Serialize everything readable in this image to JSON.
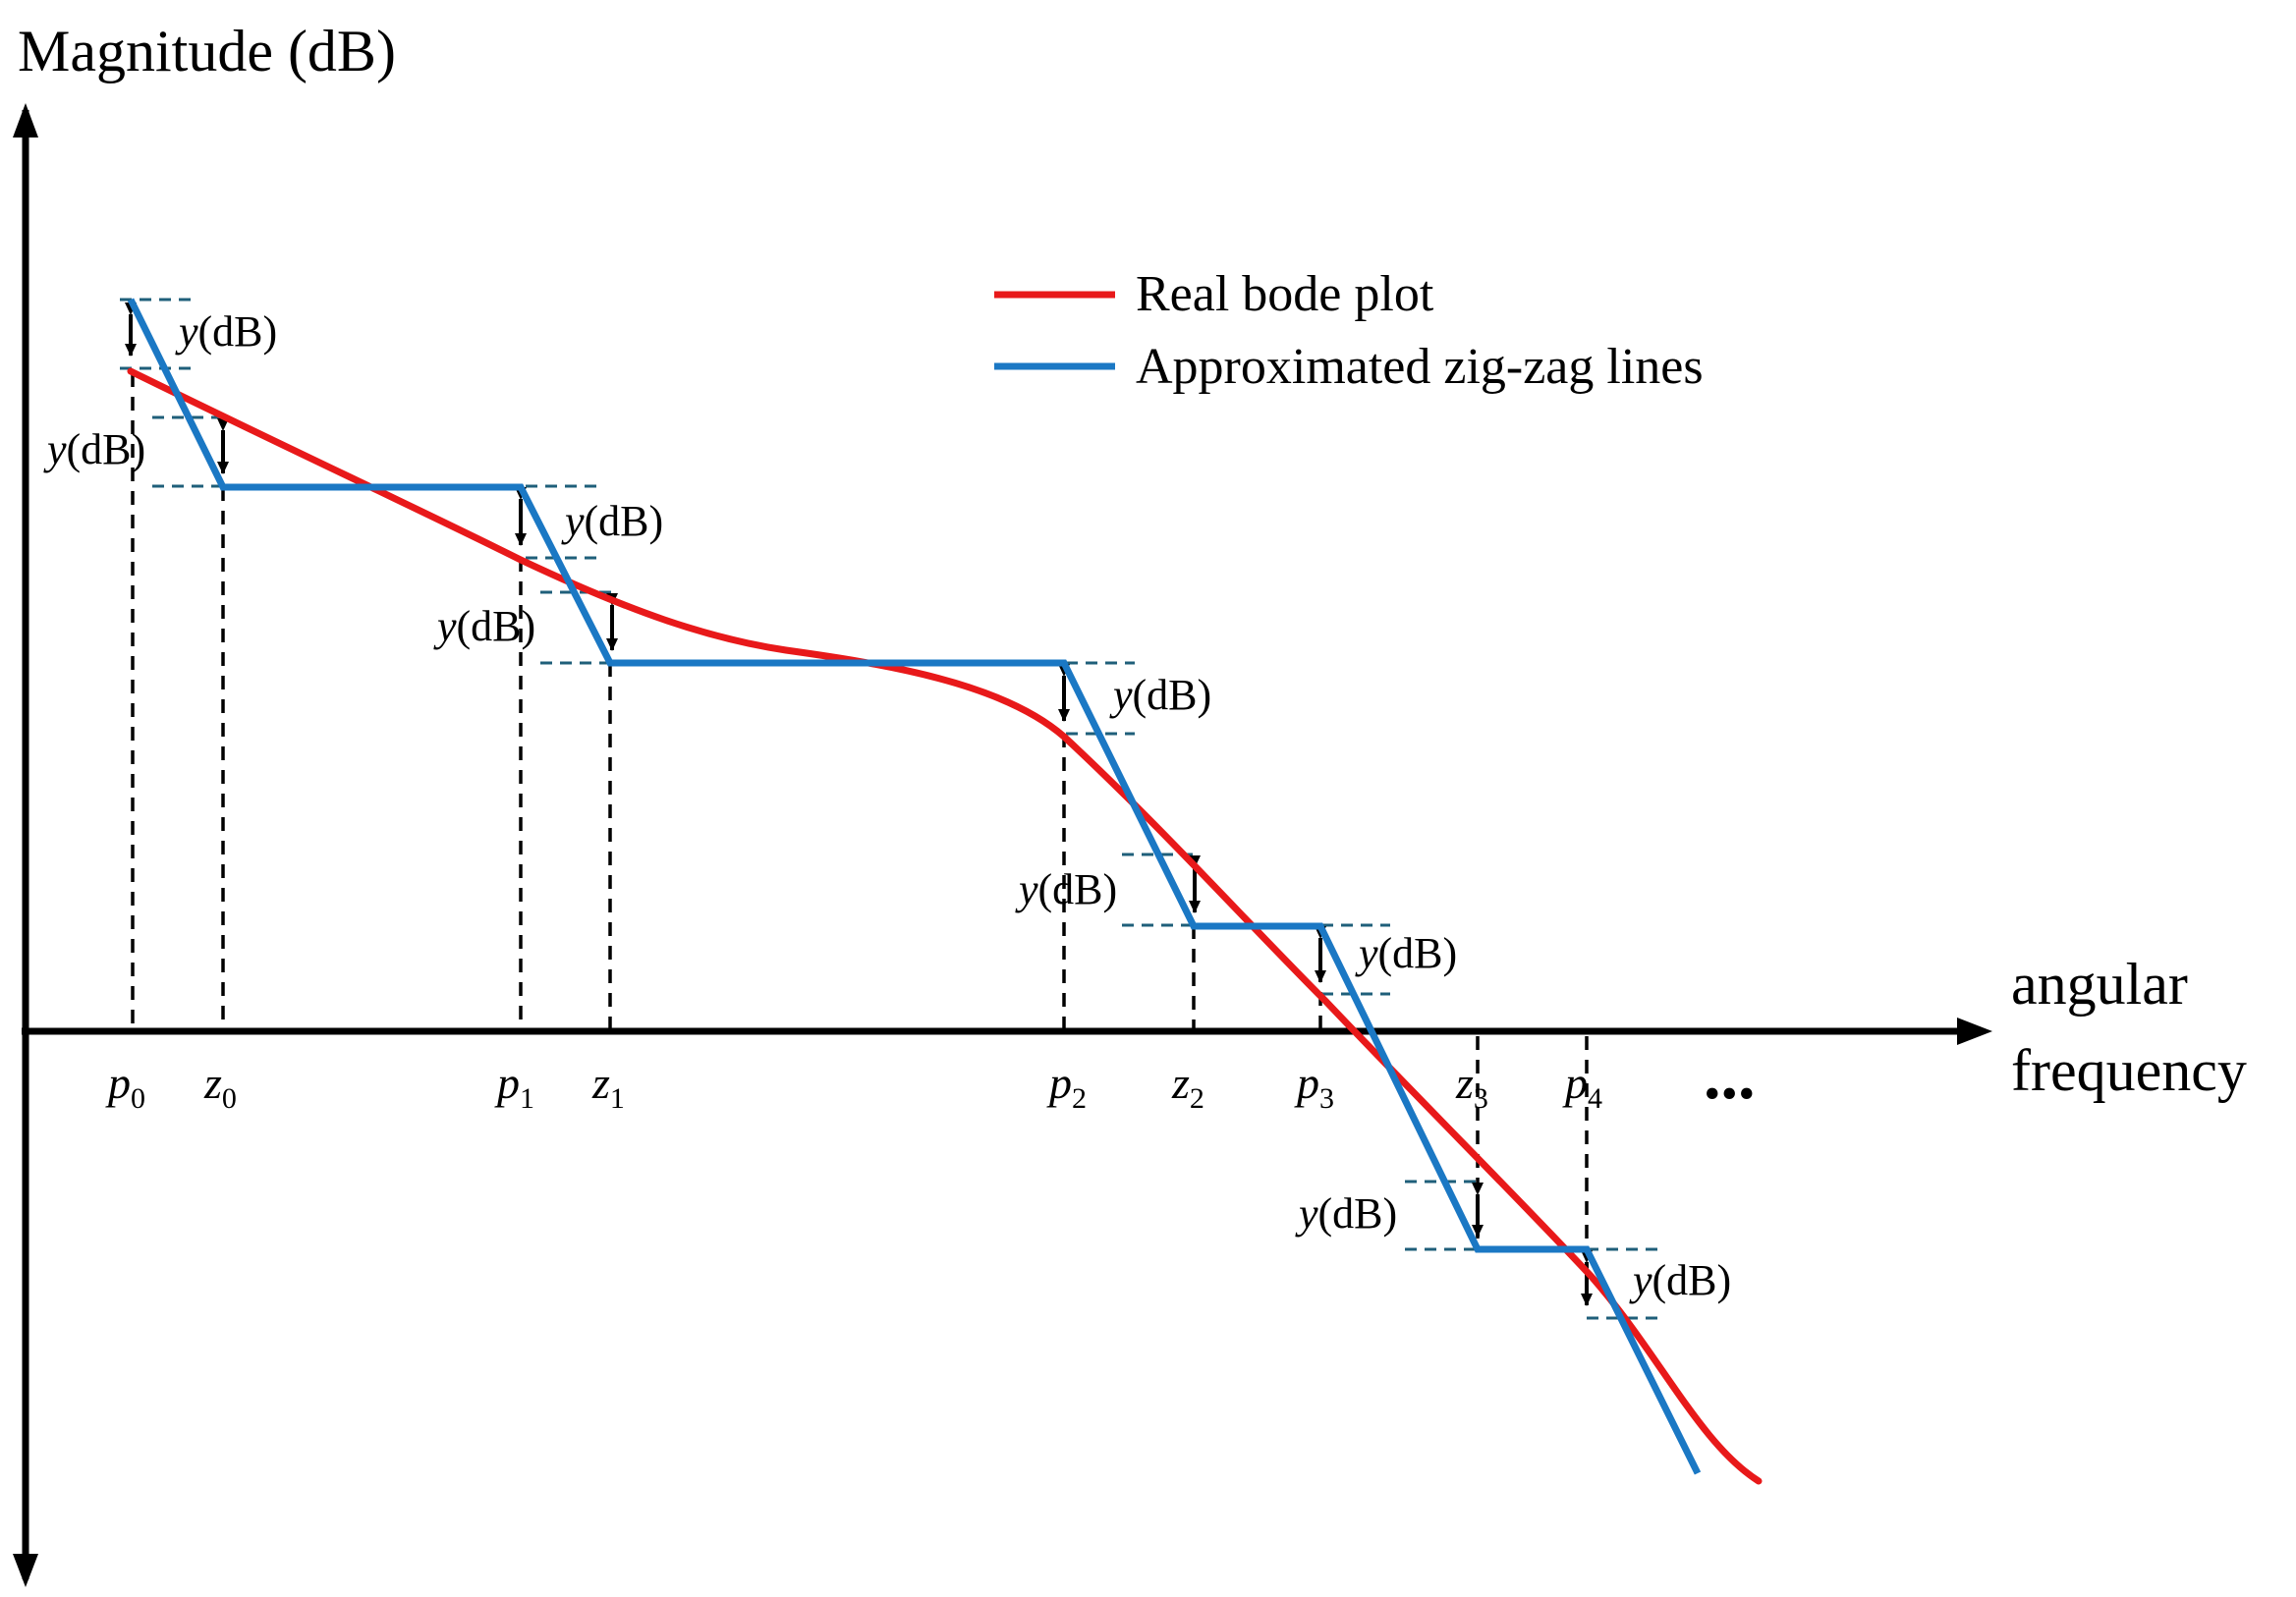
{
  "axes": {
    "y_label": "Magnitude (dB)",
    "x_label_line1": "angular",
    "x_label_line2": "frequency"
  },
  "legend": [
    {
      "label": "Real bode plot",
      "color": "#e8191a"
    },
    {
      "label": "Approximated zig-zag lines",
      "color": "#1b78c4"
    }
  ],
  "step_label": {
    "var": "y",
    "unit": "(dB)"
  },
  "frequency_marks": [
    {
      "base": "p",
      "sub": "0"
    },
    {
      "base": "z",
      "sub": "0"
    },
    {
      "base": "p",
      "sub": "1"
    },
    {
      "base": "z",
      "sub": "1"
    },
    {
      "base": "p",
      "sub": "2"
    },
    {
      "base": "z",
      "sub": "2"
    },
    {
      "base": "p",
      "sub": "3"
    },
    {
      "base": "z",
      "sub": "3"
    },
    {
      "base": "p",
      "sub": "4"
    }
  ],
  "ellipsis": "...",
  "colors": {
    "real": "#e8191a",
    "approx": "#1b78c4",
    "guide": "#1f5f7a",
    "axis": "#000000"
  }
}
